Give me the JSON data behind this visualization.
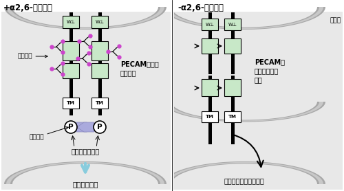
{
  "white_bg": "#ffffff",
  "panel_bg": "#e8e8e8",
  "membrane_outer": "#a8a8a8",
  "membrane_inner": "#c8c8c8",
  "pecam_green": "#c8e8c8",
  "tm_box_color": "#ffffff",
  "sialic_dot_color": "#cc44cc",
  "phospho_arrow_color": "#aaaadd",
  "left_title": "+α2,6-シアル酸",
  "right_title": "-α2,6-シアル酸",
  "label_sialic": "シアル酸",
  "label_phospho": "リン酸基",
  "label_enzyme": "脱リン酸化酵素",
  "label_signal": "生存シグナル",
  "label_pecam_interact": "PECAM同士の\n相互作用",
  "label_pecam_cannot": "PECAMが\n相互作用でき\nない",
  "label_endocytosis": "細胞内に取り込まれる",
  "label_membrane": "細胞膜",
  "tm_label": "TM",
  "w_label": "W⊥"
}
